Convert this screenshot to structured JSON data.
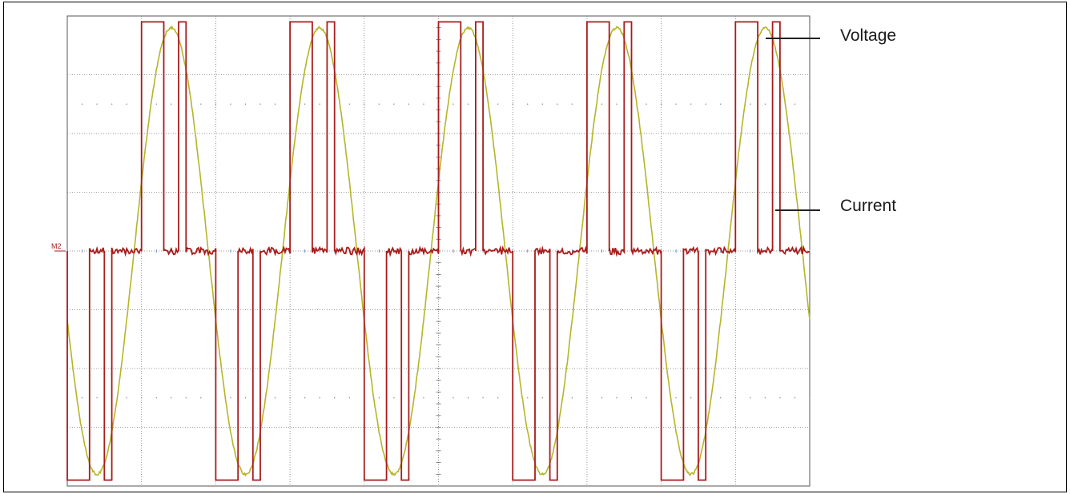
{
  "chart_data": {
    "type": "line",
    "title": "",
    "xlabel": "",
    "ylabel": "",
    "grid": true,
    "grid_divisions": {
      "x": 10,
      "y": 8
    },
    "xlim": [
      0,
      10
    ],
    "ylim": [
      -4,
      4
    ],
    "reference_marker": "M2",
    "legend_placement": "right, with leader lines",
    "colors": {
      "voltage": "#b5b52a",
      "current": "#a81c1c",
      "grid": "#7a7a7a"
    },
    "series": [
      {
        "name": "Voltage",
        "color": "#b5b52a",
        "period_divisions": 2.0,
        "amplitude_divisions": 3.8,
        "peak_at_x": 1.4,
        "waveform": "sine"
      },
      {
        "name": "Current",
        "color": "#a81c1c",
        "waveform": "pulse",
        "pulses": [
          {
            "start": 1.0,
            "end": 1.3,
            "level": 3.9
          },
          {
            "start": 1.5,
            "end": 1.6,
            "level": 3.9
          },
          {
            "start": 0.0,
            "end": 0.3,
            "level": -3.9
          },
          {
            "start": 0.5,
            "end": 0.6,
            "level": -3.9
          },
          {
            "start": 3.0,
            "end": 3.3,
            "level": 3.9
          },
          {
            "start": 3.5,
            "end": 3.6,
            "level": 3.9
          },
          {
            "start": 2.0,
            "end": 2.3,
            "level": -3.9
          },
          {
            "start": 2.5,
            "end": 2.6,
            "level": -3.9
          },
          {
            "start": 5.0,
            "end": 5.3,
            "level": 3.9
          },
          {
            "start": 5.5,
            "end": 5.6,
            "level": 3.9
          },
          {
            "start": 4.0,
            "end": 4.3,
            "level": -3.9
          },
          {
            "start": 4.5,
            "end": 4.6,
            "level": -3.9
          },
          {
            "start": 7.0,
            "end": 7.3,
            "level": 3.9
          },
          {
            "start": 7.5,
            "end": 7.6,
            "level": 3.9
          },
          {
            "start": 6.0,
            "end": 6.3,
            "level": -3.9
          },
          {
            "start": 6.5,
            "end": 6.6,
            "level": -3.9
          },
          {
            "start": 9.0,
            "end": 9.3,
            "level": 3.9
          },
          {
            "start": 9.5,
            "end": 9.6,
            "level": 3.9
          },
          {
            "start": 8.0,
            "end": 8.3,
            "level": -3.9
          },
          {
            "start": 8.5,
            "end": 8.6,
            "level": -3.9
          }
        ]
      }
    ]
  },
  "legend": {
    "voltage_label": "Voltage",
    "current_label": "Current"
  }
}
